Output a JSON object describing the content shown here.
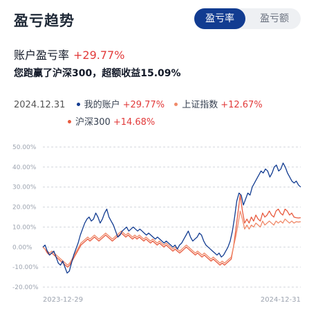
{
  "header": {
    "title": "盈亏趋势",
    "tabs": [
      {
        "label": "盈亏率",
        "active": true
      },
      {
        "label": "盈亏额",
        "active": false
      }
    ]
  },
  "summary": {
    "account_label": "账户盈亏率",
    "account_value": "+29.77%",
    "beat_text": "您跑赢了沪深300，超额收益15.09%"
  },
  "legend": {
    "date": "2024.12.31",
    "items": [
      {
        "label": "我的账户",
        "value": "+29.77%",
        "color": "#123c91"
      },
      {
        "label": "上证指数",
        "value": "+12.67%",
        "color": "#f08a6a"
      },
      {
        "label": "沪深300",
        "value": "+14.68%",
        "color": "#e85b3f"
      }
    ]
  },
  "chart_data": {
    "type": "line",
    "ylim": [
      -20,
      50
    ],
    "y_ticks": [
      "50.00%",
      "40.00%",
      "30.00%",
      "20.00%",
      "10.00%",
      "0.00%",
      "-10.00%",
      "-20.00%"
    ],
    "x_start_label": "2023-12-29",
    "x_end_label": "2024-12-31",
    "grid": true,
    "series": [
      {
        "name": "我的账户",
        "color": "#123c91",
        "values": [
          0,
          1,
          -2,
          -4,
          -3,
          -2,
          -5,
          -8,
          -9,
          -7,
          -10,
          -13,
          -12,
          -8,
          -4,
          -1,
          2,
          6,
          9,
          12,
          14,
          15,
          13,
          14,
          17,
          15,
          12,
          14,
          17,
          19,
          15,
          13,
          11,
          8,
          5,
          6,
          8,
          9,
          10,
          8,
          9,
          10,
          9,
          8,
          9,
          8,
          7,
          6,
          7,
          6,
          5,
          4,
          5,
          4,
          3,
          2,
          3,
          2,
          1,
          0,
          1,
          -1,
          1,
          2,
          4,
          6,
          8,
          5,
          3,
          4,
          5,
          7,
          6,
          3,
          1,
          0,
          -1,
          -2,
          -3,
          -4,
          -3,
          -5,
          -4,
          -2,
          0,
          3,
          8,
          15,
          23,
          27,
          26,
          21,
          24,
          27,
          26,
          30,
          32,
          34,
          36,
          38,
          37,
          39,
          38,
          35,
          37,
          40,
          41,
          38,
          39,
          42,
          40,
          37,
          35,
          33,
          32,
          33,
          31,
          30
        ]
      },
      {
        "name": "上证指数",
        "color": "#f08a6a",
        "values": [
          0,
          -1,
          -2,
          -3,
          -2,
          -3,
          -4,
          -5,
          -6,
          -7,
          -8,
          -9,
          -8,
          -6,
          -4,
          -2,
          0,
          2,
          3,
          4,
          5,
          4,
          5,
          6,
          5,
          4,
          5,
          6,
          7,
          6,
          5,
          4,
          5,
          6,
          7,
          8,
          7,
          6,
          7,
          6,
          5,
          6,
          5,
          6,
          5,
          4,
          5,
          4,
          3,
          4,
          3,
          2,
          3,
          2,
          1,
          2,
          1,
          0,
          -1,
          0,
          -1,
          -2,
          -1,
          0,
          1,
          0,
          -1,
          -2,
          -3,
          -2,
          -3,
          -4,
          -3,
          -4,
          -5,
          -6,
          -5,
          -6,
          -7,
          -8,
          -7,
          -8,
          -7,
          -6,
          -5,
          0,
          5,
          11,
          18,
          14,
          9,
          11,
          9,
          11,
          10,
          12,
          11,
          10,
          13,
          11,
          12,
          13,
          12,
          11,
          13,
          12,
          13,
          12,
          14,
          13,
          12,
          13,
          12,
          12.67,
          12.5,
          12.67
        ]
      },
      {
        "name": "沪深300",
        "color": "#e85b3f",
        "values": [
          0,
          -1,
          -3,
          -4,
          -3,
          -4,
          -5,
          -6,
          -7,
          -8,
          -9,
          -10,
          -9,
          -7,
          -5,
          -3,
          -1,
          1,
          2,
          3,
          4,
          3,
          4,
          5,
          4,
          3,
          4,
          5,
          6,
          5,
          4,
          3,
          4,
          5,
          6,
          7,
          6,
          5,
          6,
          5,
          4,
          5,
          4,
          5,
          4,
          3,
          4,
          3,
          2,
          3,
          2,
          1,
          2,
          1,
          0,
          1,
          0,
          -1,
          -2,
          -1,
          -2,
          -3,
          -2,
          -1,
          0,
          -1,
          -2,
          -3,
          -4,
          -3,
          -4,
          -5,
          -4,
          -5,
          -6,
          -7,
          -6,
          -7,
          -8,
          -9,
          -8,
          -9,
          -8,
          -7,
          -6,
          0,
          8,
          17,
          26,
          18,
          12,
          14,
          12,
          15,
          13,
          16,
          14,
          13,
          17,
          15,
          16,
          18,
          16,
          15,
          18,
          19,
          17,
          16,
          19,
          18,
          16,
          17,
          15,
          14.68,
          14.5,
          14.68
        ]
      }
    ]
  }
}
